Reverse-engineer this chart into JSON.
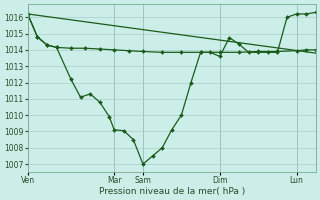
{
  "xlabel": "Pression niveau de la mer( hPa )",
  "background_color": "#cceee8",
  "grid_color": "#aacccc",
  "line_color": "#1a5c1a",
  "ylim": [
    1006.5,
    1016.8
  ],
  "yticks": [
    1007,
    1008,
    1009,
    1010,
    1011,
    1012,
    1013,
    1014,
    1015,
    1016
  ],
  "x_tick_labels": [
    "Ven",
    "Mar",
    "Sam",
    "Dim",
    "Lun"
  ],
  "x_tick_positions": [
    0,
    36,
    48,
    80,
    112
  ],
  "total_points": 120,
  "line_top": {
    "x": [
      0,
      120
    ],
    "y": [
      1016.2,
      1013.8
    ]
  },
  "line_mid": {
    "x": [
      0,
      4,
      8,
      12,
      18,
      24,
      30,
      36,
      42,
      48,
      56,
      64,
      72,
      80,
      88,
      96,
      104,
      112,
      116,
      120
    ],
    "y": [
      1016.2,
      1014.8,
      1014.3,
      1014.15,
      1014.1,
      1014.1,
      1014.05,
      1014.0,
      1013.95,
      1013.9,
      1013.85,
      1013.85,
      1013.85,
      1013.85,
      1013.85,
      1013.9,
      1013.9,
      1013.95,
      1014.0,
      1014.0
    ]
  },
  "line_low": {
    "x": [
      0,
      4,
      8,
      12,
      18,
      22,
      26,
      30,
      34,
      36,
      40,
      44,
      48,
      52,
      56,
      60,
      64,
      68,
      72,
      76,
      80,
      84,
      88,
      92,
      96,
      100,
      104,
      108,
      112,
      116,
      120
    ],
    "y": [
      1016.2,
      1014.8,
      1014.3,
      1014.15,
      1012.2,
      1011.1,
      1011.3,
      1010.8,
      1009.9,
      1009.1,
      1009.05,
      1008.5,
      1007.0,
      1007.5,
      1008.0,
      1009.1,
      1010.0,
      1012.0,
      1013.85,
      1013.85,
      1013.6,
      1014.75,
      1014.35,
      1013.85,
      1013.85,
      1013.85,
      1013.85,
      1016.0,
      1016.2,
      1016.2,
      1016.3
    ]
  }
}
